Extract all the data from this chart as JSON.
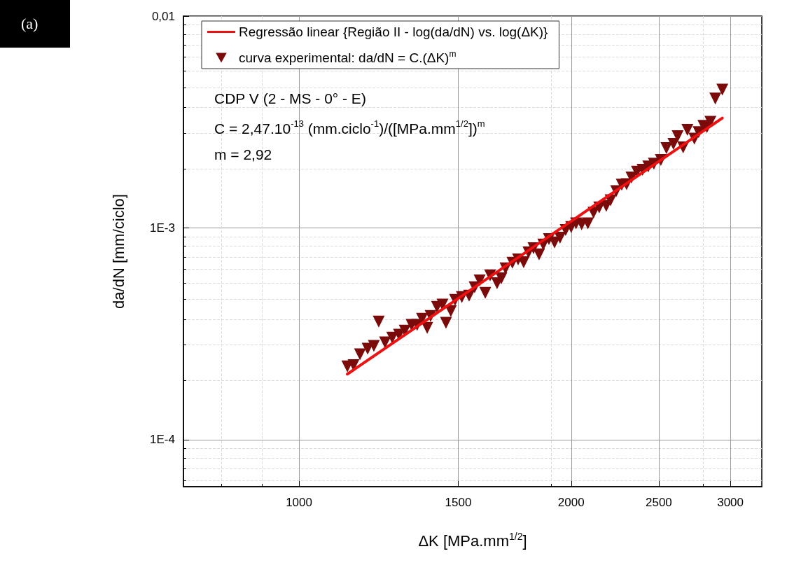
{
  "chart_data": {
    "type": "scatter",
    "xlabel": "ΔK [MPa.mm$^{1/2}$]",
    "ylabel": "da/dN [mm/ciclo]",
    "annotations": [
      "(a)",
      "CDP V (2 - MS - 0° - E)",
      "C = 2,47.10$^{-13}$ (mm.ciclo$^{-1}$)/([MPa.mm$^{1/2}$])$^{m}$",
      "m = 2,92"
    ],
    "log": "xy",
    "grid": true,
    "legend": "top",
    "marker": "triangle",
    "xlim": [
      745,
      3250
    ],
    "xticks": [
      1000,
      1500,
      2000,
      2500,
      3000
    ],
    "ylim": [
      6e-05,
      0.01
    ],
    "yticks": [
      {
        "value": 0.0001,
        "label": "1E-4"
      },
      {
        "value": 0.001,
        "label": "1E-3"
      },
      {
        "value": 0.01,
        "label": "0,01"
      }
    ],
    "series": [
      {
        "name": "Regressão linear {Região II - log(da/dN) vs. log(ΔK)}",
        "type": "line",
        "color": "#ee1111",
        "marker": "none",
        "x": [
          1131,
          2939
        ],
        "values": [
          0.000204,
          0.0033
        ]
      },
      {
        "name": "curva experimental: da/dN = C.(ΔK)$^{m}$",
        "color": "#7b0a0a",
        "x": [
          1131,
          1149,
          1168,
          1191,
          1210,
          1225,
          1245,
          1268,
          1290,
          1309,
          1332,
          1351,
          1368,
          1386,
          1398,
          1421,
          1441,
          1454,
          1472,
          1488,
          1514,
          1542,
          1564,
          1584,
          1607,
          1627,
          1656,
          1674,
          1692,
          1722,
          1747,
          1772,
          1794,
          1817,
          1843,
          1863,
          1890,
          1917,
          1944,
          1972,
          2000,
          2025,
          2054,
          2087,
          2117,
          2148,
          2187,
          2211,
          2243,
          2275,
          2303,
          2332,
          2365,
          2399,
          2434,
          2469,
          2513,
          2549,
          2595,
          2623,
          2660,
          2689,
          2737,
          2767,
          2801,
          2826,
          2851,
          2887,
          2939
        ],
        "values": [
          0.000222,
          0.000225,
          0.000253,
          0.000269,
          0.000277,
          0.000361,
          0.000288,
          0.000303,
          0.000313,
          0.000327,
          0.000348,
          0.000348,
          0.000372,
          0.000337,
          0.000384,
          0.000424,
          0.000434,
          0.000356,
          0.000405,
          0.000457,
          0.000471,
          0.000479,
          0.000524,
          0.000565,
          0.000493,
          0.000597,
          0.000548,
          0.000578,
          0.000644,
          0.000684,
          0.00071,
          0.000689,
          0.000766,
          0.000802,
          0.00075,
          0.000834,
          0.000885,
          0.000853,
          0.000899,
          0.000977,
          0.00101,
          0.00105,
          0.00104,
          0.00105,
          0.00118,
          0.00125,
          0.00127,
          0.00135,
          0.00149,
          0.0016,
          0.00161,
          0.00173,
          0.00184,
          0.00188,
          0.00195,
          0.00201,
          0.00209,
          0.00238,
          0.00249,
          0.00271,
          0.0024,
          0.0029,
          0.00264,
          0.00283,
          0.00303,
          0.00299,
          0.00317,
          0.00408,
          0.0045
        ]
      }
    ]
  }
}
